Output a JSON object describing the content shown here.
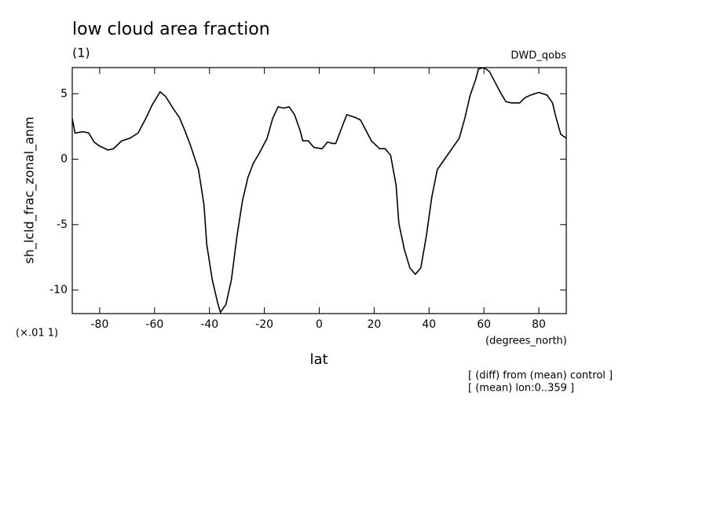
{
  "chart_data": {
    "type": "line",
    "title": "low cloud area fraction",
    "subtitle": "(1)",
    "source": "DWD_qobs",
    "y_label": "sh_lcld_frac_zonal_anm",
    "y_scale_note": "(×.01 1)",
    "x_units": "(degrees_north)",
    "x_label": "lat",
    "notes": [
      "[ (diff) from (mean) control ]",
      "[ (mean) lon:0..359 ]"
    ],
    "x": [
      -90,
      -89,
      -86,
      -84,
      -82,
      -80,
      -77,
      -75,
      -72,
      -69,
      -66,
      -63,
      -61,
      -58,
      -56,
      -53,
      -51,
      -49,
      -47,
      -44,
      -42,
      -41,
      -39,
      -37,
      -36,
      -34,
      -32,
      -30,
      -28,
      -26,
      -24,
      -22,
      -19,
      -17,
      -15,
      -13,
      -11,
      -9,
      -7,
      -6,
      -4,
      -2,
      1,
      3,
      5,
      6,
      8,
      10,
      13,
      15,
      17,
      19,
      22,
      24,
      26,
      28,
      29,
      31,
      33,
      35,
      37,
      39,
      41,
      43,
      46,
      48,
      51,
      53,
      55,
      57,
      58,
      60,
      62,
      64,
      66,
      68,
      70,
      73,
      75,
      77,
      80,
      83,
      85,
      86,
      88,
      90
    ],
    "series": [
      {
        "color": "#000000",
        "values": [
          3.1,
          2.0,
          2.1,
          2.0,
          1.3,
          1.0,
          0.7,
          0.8,
          1.4,
          1.6,
          2.0,
          3.2,
          4.1,
          5.15,
          4.8,
          3.8,
          3.2,
          2.2,
          1.1,
          -0.8,
          -3.5,
          -6.5,
          -9.2,
          -11.0,
          -11.7,
          -11.1,
          -9.2,
          -5.9,
          -3.2,
          -1.4,
          -0.3,
          0.4,
          1.6,
          3.1,
          4.0,
          3.9,
          4.0,
          3.4,
          2.2,
          1.4,
          1.4,
          0.9,
          0.8,
          1.3,
          1.2,
          1.2,
          2.3,
          3.4,
          3.2,
          3.0,
          2.2,
          1.4,
          0.8,
          0.8,
          0.3,
          -2.0,
          -4.9,
          -6.9,
          -8.3,
          -8.8,
          -8.3,
          -5.9,
          -2.9,
          -0.8,
          0.1,
          0.7,
          1.6,
          3.1,
          4.9,
          6.1,
          6.9,
          7.0,
          6.7,
          5.9,
          5.1,
          4.4,
          4.3,
          4.3,
          4.7,
          4.9,
          5.1,
          4.9,
          4.3,
          3.4,
          1.9,
          1.6
        ]
      }
    ],
    "xlim": [
      -90,
      90
    ],
    "xticks": [
      -80,
      -60,
      -40,
      -20,
      0,
      20,
      40,
      60,
      80
    ],
    "ylim": [
      -11.8,
      7
    ],
    "yticks": [
      -10,
      -5,
      0,
      5
    ]
  }
}
